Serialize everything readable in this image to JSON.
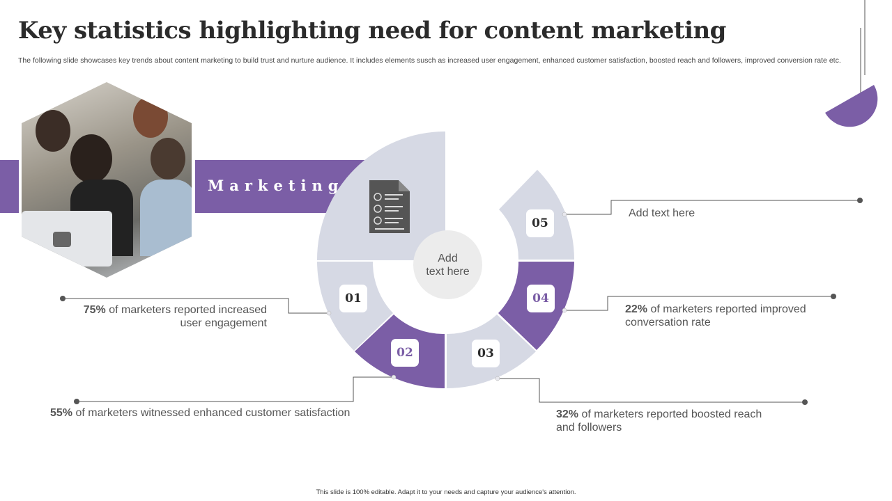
{
  "title": "Key statistics highlighting need for content marketing",
  "subtitle": "The following slide showcases key trends about content marketing to build trust and nurture audience. It includes elements susch as increased user engagement, enhanced customer satisfaction, boosted reach and followers, improved conversion rate etc.",
  "band_label": "Marketing",
  "center_text": "Add\ntext here",
  "colors": {
    "purple": "#7b5ea6",
    "light": "#d6d9e4",
    "dark": "#404040"
  },
  "segments": [
    {
      "num": "01",
      "pct": "75%",
      "text": " of marketers reported increased user engagement",
      "line2": ""
    },
    {
      "num": "02",
      "pct": "55%",
      "text": " of marketers witnessed enhanced customer satisfaction"
    },
    {
      "num": "03",
      "pct": "32%",
      "text": " of marketers reported boosted reach and followers"
    },
    {
      "num": "04",
      "pct": "22%",
      "text": " of marketers reported improved conversation rate"
    },
    {
      "num": "05",
      "text": "Add text here"
    }
  ],
  "icon": "document-dollar-icon",
  "footer": "This slide is 100% editable. Adapt it to your needs and capture your audience's attention."
}
